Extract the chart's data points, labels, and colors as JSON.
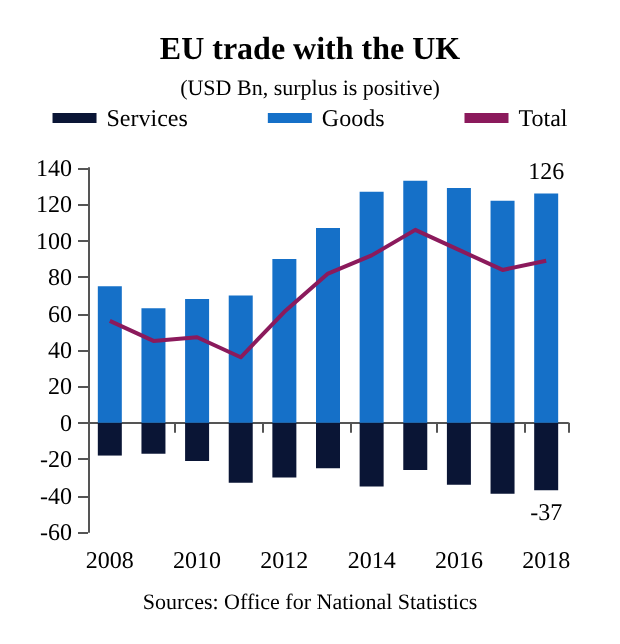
{
  "chart_data": {
    "type": "bar",
    "title": "EU trade with the UK",
    "subtitle": "(USD Bn, surplus is positive)",
    "stacked": true,
    "categories": [
      "2008",
      null,
      "2010",
      null,
      "2012",
      null,
      "2014",
      null,
      "2016",
      null,
      "2018"
    ],
    "series": [
      {
        "name": "Services",
        "color": "#0a1535",
        "values": [
          -18,
          -17,
          -21,
          -33,
          -30,
          -25,
          -35,
          -26,
          -34,
          -39,
          -37
        ],
        "value_labels": [
          null,
          null,
          null,
          null,
          null,
          null,
          null,
          null,
          null,
          null,
          "-37"
        ]
      },
      {
        "name": "Goods",
        "color": "#1570c8",
        "values": [
          75,
          63,
          68,
          70,
          90,
          107,
          127,
          133,
          129,
          122,
          126
        ],
        "value_labels": [
          null,
          null,
          null,
          null,
          null,
          null,
          null,
          null,
          null,
          null,
          "126"
        ]
      },
      {
        "name": "Total",
        "type": "line",
        "color": "#8b1a5c",
        "values": [
          56,
          45,
          47,
          36,
          61,
          82,
          92,
          106,
          95,
          84,
          89
        ]
      }
    ],
    "ylim": [
      -60,
      140
    ],
    "yticks": [
      -60,
      -40,
      -20,
      0,
      20,
      40,
      60,
      80,
      100,
      120,
      140
    ],
    "legend": "top",
    "marker": "none",
    "annotations": [
      "Sources: Office for National Statistics"
    ]
  }
}
